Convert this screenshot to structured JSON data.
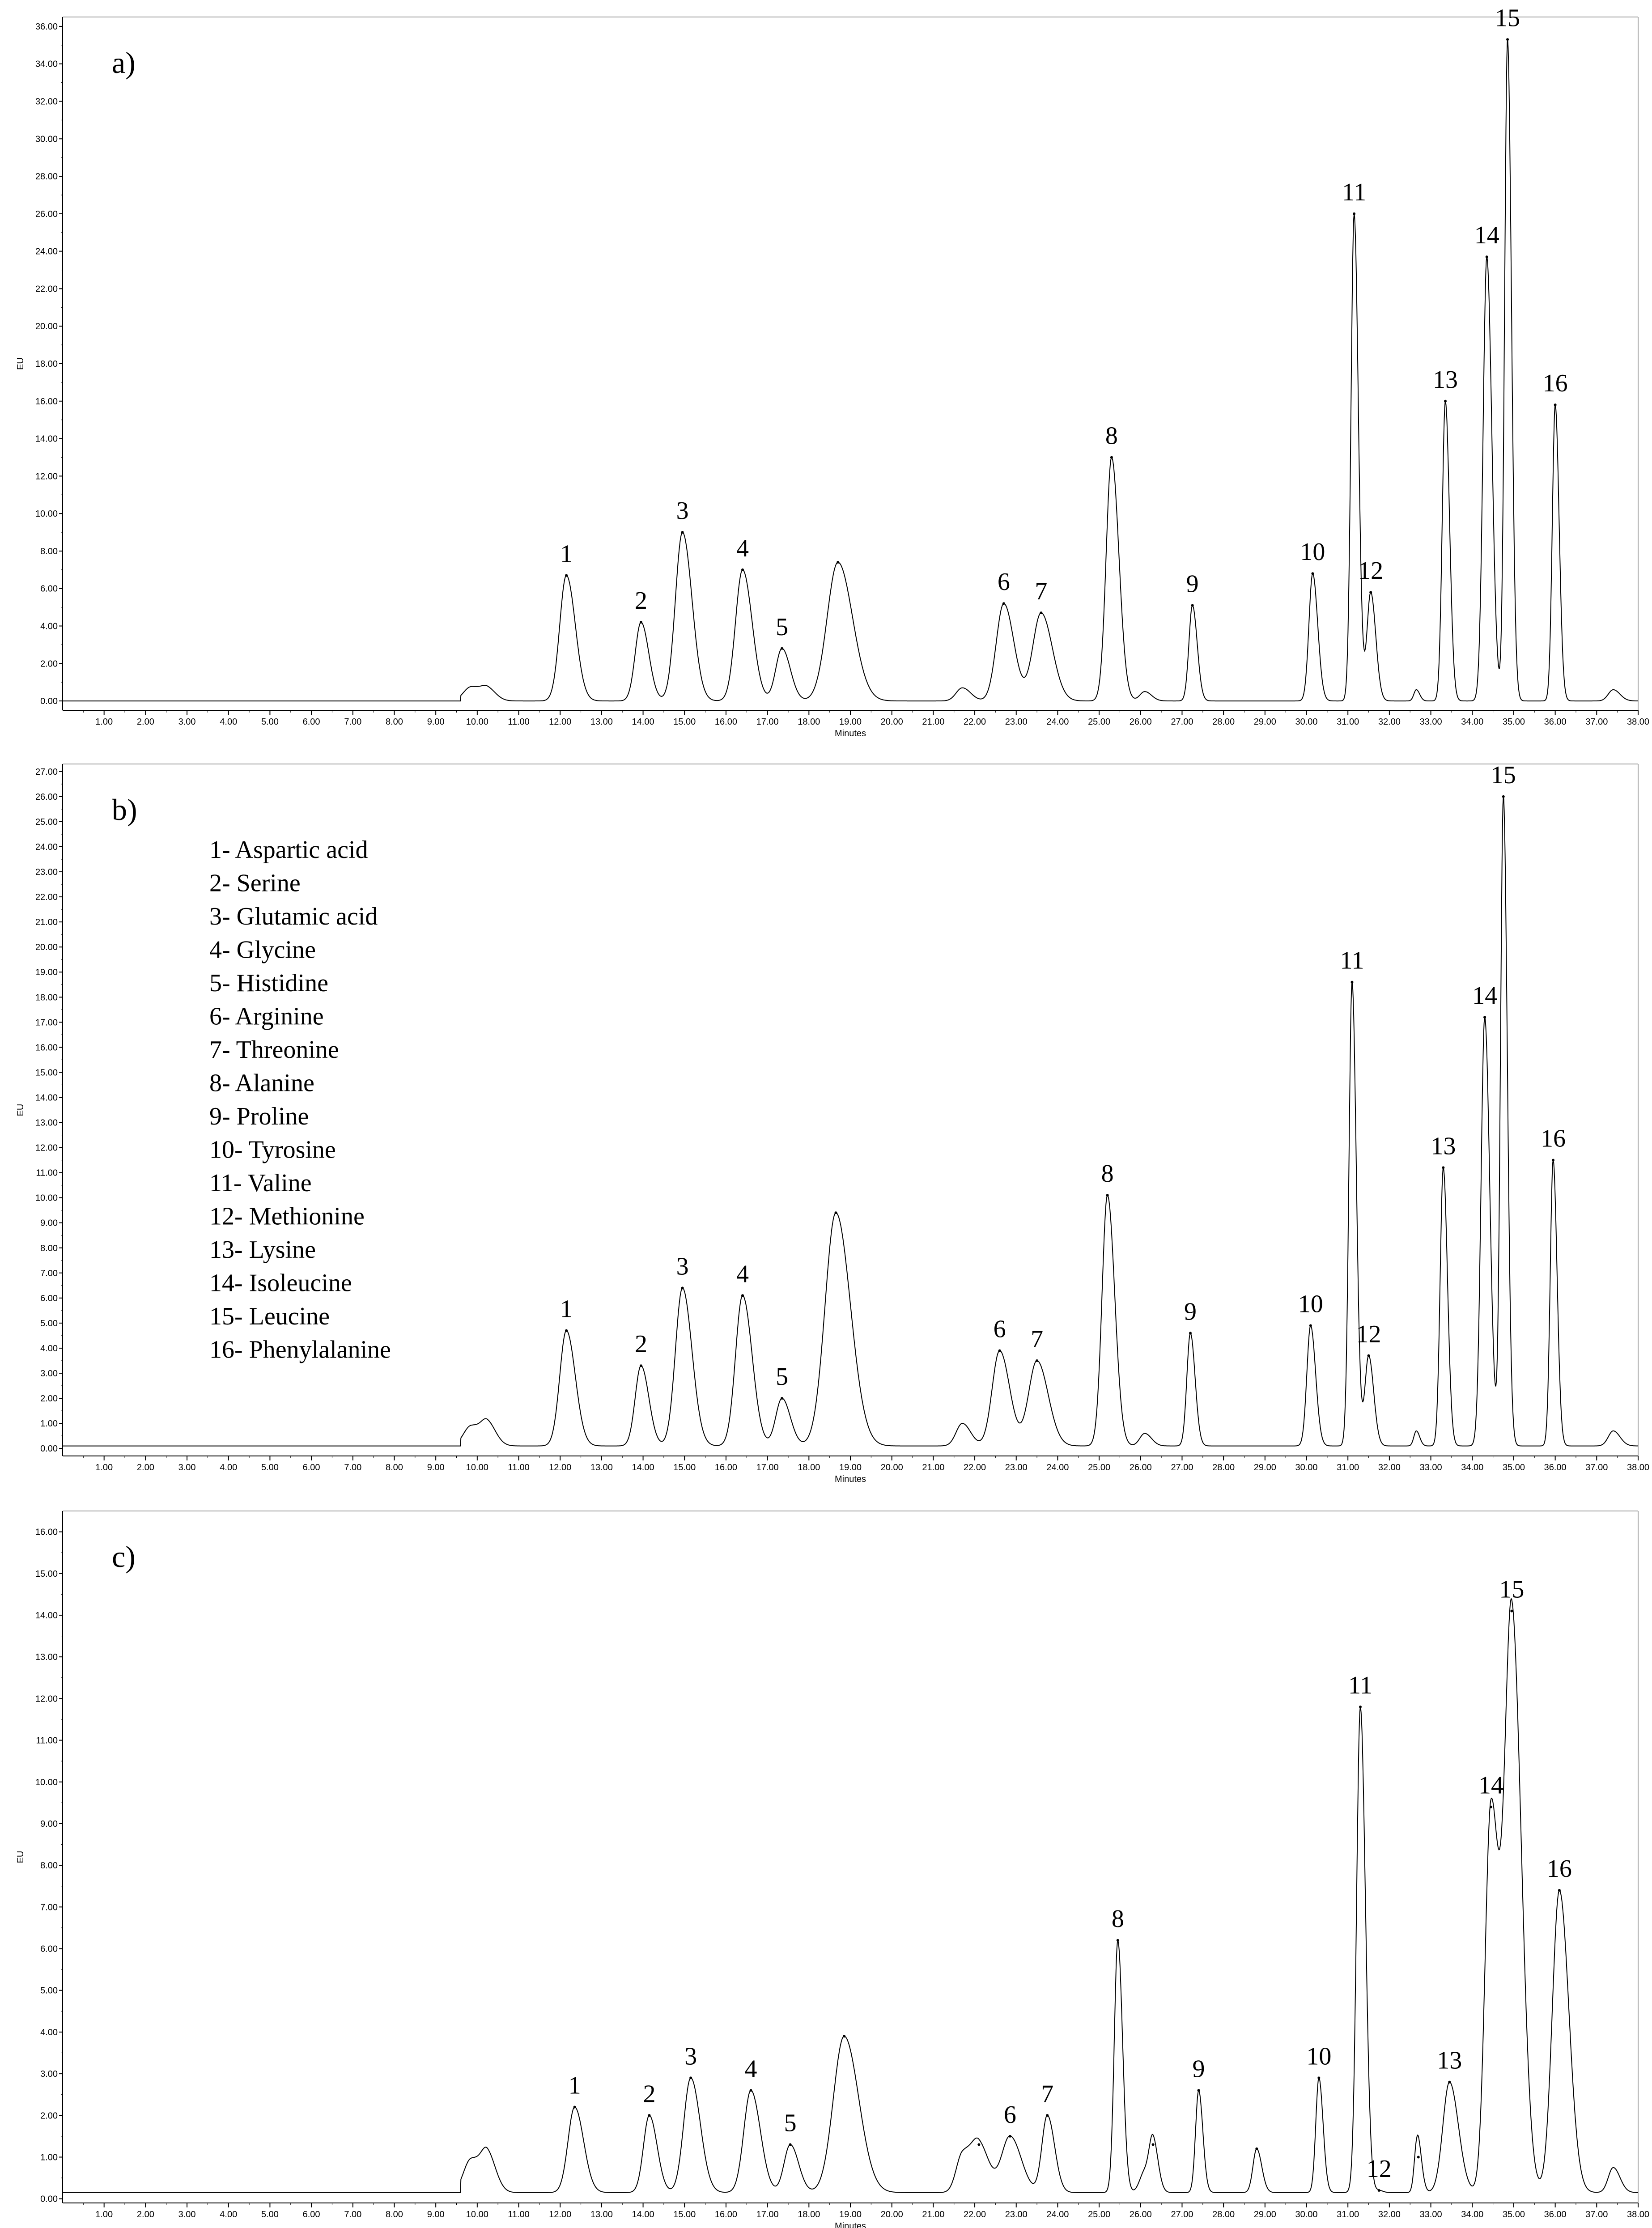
{
  "chart_data": [
    {
      "id": "a",
      "type": "line",
      "title": "a)",
      "xlabel": "Minutes",
      "ylabel": "EU",
      "xlim": [
        0,
        38
      ],
      "ylim": [
        -0.5,
        36.5
      ],
      "yticks": [
        "0.00",
        "2.00",
        "4.00",
        "6.00",
        "8.00",
        "10.00",
        "12.00",
        "14.00",
        "16.00",
        "18.00",
        "20.00",
        "22.00",
        "24.00",
        "26.00",
        "28.00",
        "30.00",
        "32.00",
        "34.00",
        "36.00"
      ],
      "xticks": [
        "1.00",
        "2.00",
        "3.00",
        "4.00",
        "5.00",
        "6.00",
        "7.00",
        "8.00",
        "9.00",
        "10.00",
        "11.00",
        "12.00",
        "13.00",
        "14.00",
        "15.00",
        "16.00",
        "17.00",
        "18.00",
        "19.00",
        "20.00",
        "21.00",
        "22.00",
        "23.00",
        "24.00",
        "25.00",
        "26.00",
        "27.00",
        "28.00",
        "29.00",
        "30.00",
        "31.00",
        "32.00",
        "33.00",
        "34.00",
        "35.00",
        "36.00",
        "37.00",
        "38.00"
      ],
      "baseline": 0.0,
      "peaks": [
        {
          "label": "1",
          "x": 12.15,
          "y": 6.7
        },
        {
          "label": "2",
          "x": 13.95,
          "y": 4.2
        },
        {
          "label": "3",
          "x": 14.95,
          "y": 9.0
        },
        {
          "label": "4",
          "x": 16.4,
          "y": 7.0
        },
        {
          "label": "5",
          "x": 17.35,
          "y": 2.8
        },
        {
          "label": "",
          "x": 18.7,
          "y": 7.4
        },
        {
          "label": "6",
          "x": 22.7,
          "y": 5.2
        },
        {
          "label": "7",
          "x": 23.6,
          "y": 4.7
        },
        {
          "label": "8",
          "x": 25.3,
          "y": 13.0
        },
        {
          "label": "9",
          "x": 27.25,
          "y": 5.1
        },
        {
          "label": "10",
          "x": 30.15,
          "y": 6.8
        },
        {
          "label": "11",
          "x": 31.15,
          "y": 26.0
        },
        {
          "label": "12",
          "x": 31.55,
          "y": 5.8
        },
        {
          "label": "13",
          "x": 33.35,
          "y": 16.0
        },
        {
          "label": "14",
          "x": 34.35,
          "y": 23.7
        },
        {
          "label": "15",
          "x": 34.85,
          "y": 35.3
        },
        {
          "label": "16",
          "x": 36.0,
          "y": 15.8
        }
      ]
    },
    {
      "id": "b",
      "type": "line",
      "title": "b)",
      "xlabel": "Minutes",
      "ylabel": "EU",
      "xlim": [
        0,
        38
      ],
      "ylim": [
        -0.3,
        27.3
      ],
      "yticks": [
        "0.00",
        "1.00",
        "2.00",
        "3.00",
        "4.00",
        "5.00",
        "6.00",
        "7.00",
        "8.00",
        "9.00",
        "10.00",
        "11.00",
        "12.00",
        "13.00",
        "14.00",
        "15.00",
        "16.00",
        "17.00",
        "18.00",
        "19.00",
        "20.00",
        "21.00",
        "22.00",
        "23.00",
        "24.00",
        "25.00",
        "26.00",
        "27.00"
      ],
      "xticks": [
        "1.00",
        "2.00",
        "3.00",
        "4.00",
        "5.00",
        "6.00",
        "7.00",
        "8.00",
        "9.00",
        "10.00",
        "11.00",
        "12.00",
        "13.00",
        "14.00",
        "15.00",
        "16.00",
        "17.00",
        "18.00",
        "19.00",
        "20.00",
        "21.00",
        "22.00",
        "23.00",
        "24.00",
        "25.00",
        "26.00",
        "27.00",
        "28.00",
        "29.00",
        "30.00",
        "31.00",
        "32.00",
        "33.00",
        "34.00",
        "35.00",
        "36.00",
        "37.00",
        "38.00"
      ],
      "baseline": 0.1,
      "peaks": [
        {
          "label": "1",
          "x": 12.15,
          "y": 4.7
        },
        {
          "label": "2",
          "x": 13.95,
          "y": 3.3
        },
        {
          "label": "3",
          "x": 14.95,
          "y": 6.4
        },
        {
          "label": "4",
          "x": 16.4,
          "y": 6.1
        },
        {
          "label": "5",
          "x": 17.35,
          "y": 2.0
        },
        {
          "label": "",
          "x": 18.65,
          "y": 9.4
        },
        {
          "label": "6",
          "x": 22.6,
          "y": 3.9
        },
        {
          "label": "7",
          "x": 23.5,
          "y": 3.5
        },
        {
          "label": "8",
          "x": 25.2,
          "y": 10.1
        },
        {
          "label": "9",
          "x": 27.2,
          "y": 4.6
        },
        {
          "label": "10",
          "x": 30.1,
          "y": 4.9
        },
        {
          "label": "11",
          "x": 31.1,
          "y": 18.6
        },
        {
          "label": "12",
          "x": 31.5,
          "y": 3.7
        },
        {
          "label": "13",
          "x": 33.3,
          "y": 11.2
        },
        {
          "label": "14",
          "x": 34.3,
          "y": 17.2
        },
        {
          "label": "15",
          "x": 34.75,
          "y": 26.0
        },
        {
          "label": "16",
          "x": 35.95,
          "y": 11.5
        }
      ],
      "legend": [
        "1- Aspartic acid",
        "2- Serine",
        "3- Glutamic acid",
        "4- Glycine",
        "5- Histidine",
        "6- Arginine",
        "7- Threonine",
        "8- Alanine",
        "9- Proline",
        "10- Tyrosine",
        "11- Valine",
        "12- Methionine",
        "13- Lysine",
        "14- Isoleucine",
        "15- Leucine",
        "16- Phenylalanine"
      ]
    },
    {
      "id": "c",
      "type": "line",
      "title": "c)",
      "xlabel": "Minutes",
      "ylabel": "EU",
      "xlim": [
        0,
        38
      ],
      "ylim": [
        -0.1,
        16.5
      ],
      "yticks": [
        "0.00",
        "1.00",
        "2.00",
        "3.00",
        "4.00",
        "5.00",
        "6.00",
        "7.00",
        "8.00",
        "9.00",
        "10.00",
        "11.00",
        "12.00",
        "13.00",
        "14.00",
        "15.00",
        "16.00"
      ],
      "xticks": [
        "1.00",
        "2.00",
        "3.00",
        "4.00",
        "5.00",
        "6.00",
        "7.00",
        "8.00",
        "9.00",
        "10.00",
        "11.00",
        "12.00",
        "13.00",
        "14.00",
        "15.00",
        "16.00",
        "17.00",
        "18.00",
        "19.00",
        "20.00",
        "21.00",
        "22.00",
        "23.00",
        "24.00",
        "25.00",
        "26.00",
        "27.00",
        "28.00",
        "29.00",
        "30.00",
        "31.00",
        "32.00",
        "33.00",
        "34.00",
        "35.00",
        "36.00",
        "37.00",
        "38.00"
      ],
      "baseline": 0.15,
      "peaks": [
        {
          "label": "1",
          "x": 12.35,
          "y": 2.2
        },
        {
          "label": "2",
          "x": 14.15,
          "y": 2.0
        },
        {
          "label": "3",
          "x": 15.15,
          "y": 2.9
        },
        {
          "label": "4",
          "x": 16.6,
          "y": 2.6
        },
        {
          "label": "5",
          "x": 17.55,
          "y": 1.3
        },
        {
          "label": "",
          "x": 18.85,
          "y": 3.9
        },
        {
          "label": "",
          "x": 22.1,
          "y": 1.3
        },
        {
          "label": "6",
          "x": 22.85,
          "y": 1.5
        },
        {
          "label": "7",
          "x": 23.75,
          "y": 2.0
        },
        {
          "label": "8",
          "x": 25.45,
          "y": 6.2
        },
        {
          "label": "",
          "x": 26.3,
          "y": 1.3
        },
        {
          "label": "9",
          "x": 27.4,
          "y": 2.6
        },
        {
          "label": "",
          "x": 28.8,
          "y": 1.2
        },
        {
          "label": "10",
          "x": 30.3,
          "y": 2.9
        },
        {
          "label": "11",
          "x": 31.3,
          "y": 11.8
        },
        {
          "label": "12",
          "x": 31.75,
          "y": 0.2
        },
        {
          "label": "",
          "x": 32.7,
          "y": 1.0
        },
        {
          "label": "13",
          "x": 33.45,
          "y": 2.8
        },
        {
          "label": "14",
          "x": 34.45,
          "y": 9.4
        },
        {
          "label": "15",
          "x": 34.95,
          "y": 14.1
        },
        {
          "label": "16",
          "x": 36.1,
          "y": 7.4
        }
      ]
    }
  ]
}
